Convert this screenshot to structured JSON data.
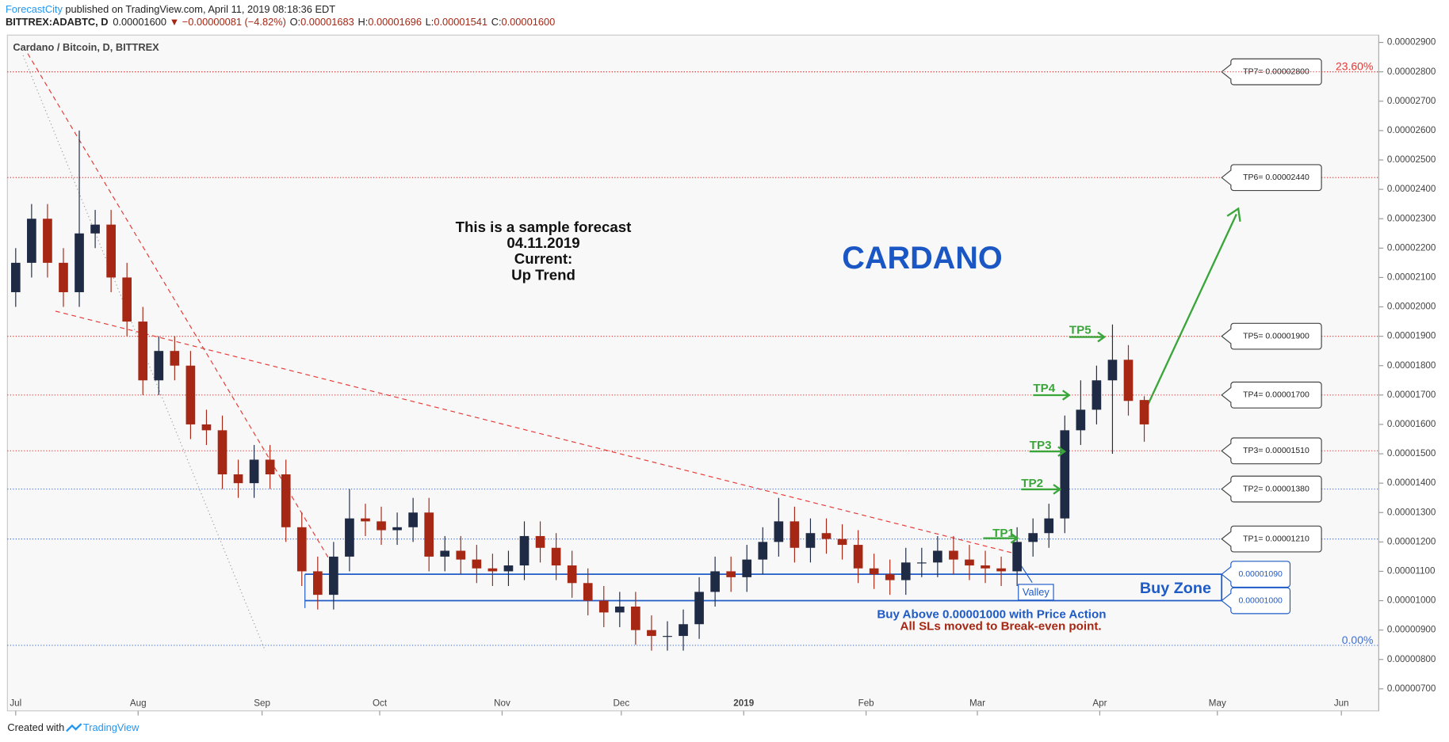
{
  "header": {
    "author": "ForecastCity",
    "published": "published on TradingView.com, April 11, 2019 08:18:36 EDT",
    "symbol": "BITTREX:ADABTC, D",
    "last": "0.00001600",
    "change": "▼ −0.00000081 (−4.82%)",
    "ohlc": [
      {
        "key": "O:",
        "value": "0.00001683"
      },
      {
        "key": "H:",
        "value": "0.00001696"
      },
      {
        "key": "L:",
        "value": "0.00001541"
      },
      {
        "key": "C:",
        "value": "0.00001600"
      }
    ]
  },
  "chart_data": {
    "type": "candlestick",
    "title": "Cardano / Bitcoin, D, BITTREX",
    "up_color": "#1f2a44",
    "down_color": "#a52714",
    "open": [
      2.05e-05,
      2.15e-05,
      2.3e-05,
      2.15e-05,
      2.05e-05,
      2.25e-05,
      2.28e-05,
      2.1e-05,
      1.95e-05,
      1.75e-05,
      1.85e-05,
      1.8e-05,
      1.6e-05,
      1.58e-05,
      1.43e-05,
      1.4e-05,
      1.48e-05,
      1.43e-05,
      1.25e-05,
      1.1e-05,
      1.02e-05,
      1.15e-05,
      1.28e-05,
      1.27e-05,
      1.24e-05,
      1.25e-05,
      1.3e-05,
      1.15e-05,
      1.17e-05,
      1.14e-05,
      1.11e-05,
      1.1e-05,
      1.12e-05,
      1.22e-05,
      1.18e-05,
      1.12e-05,
      1.06e-05,
      1e-05,
      9.6e-06,
      9.8e-06,
      9e-06,
      8.8e-06,
      8.8e-06,
      9.2e-06,
      1.03e-05,
      1.1e-05,
      1.08e-05,
      1.14e-05,
      1.2e-05,
      1.27e-05,
      1.18e-05,
      1.23e-05,
      1.21e-05,
      1.19e-05,
      1.11e-05,
      1.09e-05,
      1.07e-05,
      1.13e-05,
      1.13e-05,
      1.17e-05,
      1.14e-05,
      1.12e-05,
      1.11e-05,
      1.1e-05,
      1.2e-05,
      1.23e-05,
      1.28e-05,
      1.58e-05,
      1.65e-05,
      1.75e-05,
      1.82e-05,
      1.683e-05
    ],
    "high": [
      2.2e-05,
      2.35e-05,
      2.35e-05,
      2.2e-05,
      2.6e-05,
      2.33e-05,
      2.33e-05,
      2.15e-05,
      2e-05,
      1.9e-05,
      1.9e-05,
      1.85e-05,
      1.65e-05,
      1.63e-05,
      1.48e-05,
      1.53e-05,
      1.53e-05,
      1.48e-05,
      1.3e-05,
      1.15e-05,
      1.2e-05,
      1.38e-05,
      1.33e-05,
      1.32e-05,
      1.3e-05,
      1.35e-05,
      1.35e-05,
      1.22e-05,
      1.22e-05,
      1.19e-05,
      1.16e-05,
      1.17e-05,
      1.27e-05,
      1.27e-05,
      1.23e-05,
      1.17e-05,
      1.11e-05,
      1.05e-05,
      1.03e-05,
      1.03e-05,
      9.5e-06,
      9.3e-06,
      9.7e-06,
      1.08e-05,
      1.15e-05,
      1.15e-05,
      1.19e-05,
      1.25e-05,
      1.35e-05,
      1.32e-05,
      1.28e-05,
      1.28e-05,
      1.26e-05,
      1.24e-05,
      1.16e-05,
      1.14e-05,
      1.18e-05,
      1.18e-05,
      1.22e-05,
      1.22e-05,
      1.19e-05,
      1.17e-05,
      1.15e-05,
      1.25e-05,
      1.28e-05,
      1.33e-05,
      1.63e-05,
      1.75e-05,
      1.8e-05,
      1.94e-05,
      1.87e-05,
      1.696e-05
    ],
    "low": [
      2e-05,
      2.1e-05,
      2.1e-05,
      2e-05,
      2e-05,
      2.2e-05,
      2.05e-05,
      1.9e-05,
      1.7e-05,
      1.7e-05,
      1.75e-05,
      1.55e-05,
      1.53e-05,
      1.38e-05,
      1.35e-05,
      1.35e-05,
      1.38e-05,
      1.2e-05,
      1.05e-05,
      9.7e-06,
      9.7e-06,
      1.1e-05,
      1.22e-05,
      1.19e-05,
      1.19e-05,
      1.2e-05,
      1.1e-05,
      1.1e-05,
      1.09e-05,
      1.06e-05,
      1.05e-05,
      1.05e-05,
      1.07e-05,
      1.13e-05,
      1.07e-05,
      1.01e-05,
      9.5e-06,
      9.1e-06,
      9.1e-06,
      8.5e-06,
      8.3e-06,
      8.3e-06,
      8.3e-06,
      8.7e-06,
      9.8e-06,
      1.03e-05,
      1.03e-05,
      1.09e-05,
      1.15e-05,
      1.13e-05,
      1.13e-05,
      1.16e-05,
      1.14e-05,
      1.06e-05,
      1.04e-05,
      1.02e-05,
      1.02e-05,
      1.08e-05,
      1.08e-05,
      1.09e-05,
      1.07e-05,
      1.06e-05,
      1.05e-05,
      1.05e-05,
      1.15e-05,
      1.18e-05,
      1.23e-05,
      1.53e-05,
      1.6e-05,
      1.5e-05,
      1.63e-05,
      1.541e-05
    ],
    "close": [
      2.15e-05,
      2.3e-05,
      2.15e-05,
      2.05e-05,
      2.25e-05,
      2.28e-05,
      2.1e-05,
      1.95e-05,
      1.75e-05,
      1.85e-05,
      1.8e-05,
      1.6e-05,
      1.58e-05,
      1.43e-05,
      1.4e-05,
      1.48e-05,
      1.43e-05,
      1.25e-05,
      1.1e-05,
      1.02e-05,
      1.15e-05,
      1.28e-05,
      1.27e-05,
      1.24e-05,
      1.25e-05,
      1.3e-05,
      1.15e-05,
      1.17e-05,
      1.14e-05,
      1.11e-05,
      1.1e-05,
      1.12e-05,
      1.22e-05,
      1.18e-05,
      1.12e-05,
      1.06e-05,
      1e-05,
      9.6e-06,
      9.8e-06,
      9e-06,
      8.8e-06,
      8.8e-06,
      9.2e-06,
      1.03e-05,
      1.1e-05,
      1.08e-05,
      1.14e-05,
      1.2e-05,
      1.27e-05,
      1.18e-05,
      1.23e-05,
      1.21e-05,
      1.19e-05,
      1.11e-05,
      1.09e-05,
      1.07e-05,
      1.13e-05,
      1.13e-05,
      1.17e-05,
      1.14e-05,
      1.12e-05,
      1.11e-05,
      1.1e-05,
      1.2e-05,
      1.23e-05,
      1.28e-05,
      1.58e-05,
      1.65e-05,
      1.75e-05,
      1.82e-05,
      1.68e-05,
      1.6e-05
    ],
    "xlim": [
      -0.5,
      85.8
    ],
    "xticks": [
      {
        "value": 0,
        "label": "Jul"
      },
      {
        "value": 7.7,
        "label": "Aug"
      },
      {
        "value": 15.5,
        "label": "Sep"
      },
      {
        "value": 22.9,
        "label": "Oct"
      },
      {
        "value": 30.6,
        "label": "Nov"
      },
      {
        "value": 38.1,
        "label": "Dec"
      },
      {
        "value": 45.8,
        "label": "2019"
      },
      {
        "value": 53.5,
        "label": "Feb"
      },
      {
        "value": 60.5,
        "label": "Mar"
      },
      {
        "value": 68.2,
        "label": "Apr"
      },
      {
        "value": 75.6,
        "label": "May"
      },
      {
        "value": 83.4,
        "label": "Jun"
      }
    ],
    "ylim": [
      6.25e-06,
      2.925e-05
    ],
    "yticks": [
      {
        "value": 7e-06,
        "label": "0.00000700"
      },
      {
        "value": 8e-06,
        "label": "0.00000800"
      },
      {
        "value": 9e-06,
        "label": "0.00000900"
      },
      {
        "value": 1e-05,
        "label": "0.00001000"
      },
      {
        "value": 1.1e-05,
        "label": "0.00001100"
      },
      {
        "value": 1.2e-05,
        "label": "0.00001200"
      },
      {
        "value": 1.3e-05,
        "label": "0.00001300"
      },
      {
        "value": 1.4e-05,
        "label": "0.00001400"
      },
      {
        "value": 1.5e-05,
        "label": "0.00001500"
      },
      {
        "value": 1.6e-05,
        "label": "0.00001600"
      },
      {
        "value": 1.7e-05,
        "label": "0.00001700"
      },
      {
        "value": 1.8e-05,
        "label": "0.00001800"
      },
      {
        "value": 1.9e-05,
        "label": "0.00001900"
      },
      {
        "value": 2e-05,
        "label": "0.00002000"
      },
      {
        "value": 2.1e-05,
        "label": "0.00002100"
      },
      {
        "value": 2.2e-05,
        "label": "0.00002200"
      },
      {
        "value": 2.3e-05,
        "label": "0.00002300"
      },
      {
        "value": 2.4e-05,
        "label": "0.00002400"
      },
      {
        "value": 2.5e-05,
        "label": "0.00002500"
      },
      {
        "value": 2.6e-05,
        "label": "0.00002600"
      },
      {
        "value": 2.7e-05,
        "label": "0.00002700"
      },
      {
        "value": 2.8e-05,
        "label": "0.00002800"
      },
      {
        "value": 2.9e-05,
        "label": "0.00002900"
      }
    ],
    "levels": [
      {
        "label": "TP7= 0.00002800",
        "value": 2.8e-05,
        "color": "#e53935"
      },
      {
        "label": "TP6= 0.00002440",
        "value": 2.44e-05,
        "color": "#e53935"
      },
      {
        "label": "TP5= 0.00001900",
        "value": 1.9e-05,
        "color": "#e53935"
      },
      {
        "label": "TP4= 0.00001700",
        "value": 1.7e-05,
        "color": "#e53935"
      },
      {
        "label": "TP3= 0.00001510",
        "value": 1.51e-05,
        "color": "#e53935"
      },
      {
        "label": "TP2= 0.00001380",
        "value": 1.38e-05,
        "color": "#3d6fd6"
      },
      {
        "label": "TP1= 0.00001210",
        "value": 1.21e-05,
        "color": "#3d6fd6"
      }
    ],
    "fib": [
      {
        "label": "23.60%",
        "value": 2.8e-05,
        "color": "#e53935"
      },
      {
        "label": "0.00%",
        "value": 8.48e-06,
        "color": "#3d6fd6"
      }
    ],
    "buy_zone": {
      "label": "Buy Zone",
      "top": 1.09e-05,
      "bottom": 1e-05,
      "top_label": "0.00001090",
      "bottom_label": "0.00001000",
      "color": "#1e5bc6"
    },
    "targets": [
      "TP1",
      "TP2",
      "TP3",
      "TP4",
      "TP5"
    ],
    "forecast": [
      "This is a sample forecast",
      "04.11.2019",
      "Current:",
      "Up Trend"
    ],
    "name": "CARDANO",
    "valley": "Valley",
    "notes": [
      "Buy Above 0.00001000 with Price Action",
      "All SLs moved to Break-even point."
    ]
  },
  "footer": {
    "text": "Created with",
    "brand": "TradingView"
  }
}
